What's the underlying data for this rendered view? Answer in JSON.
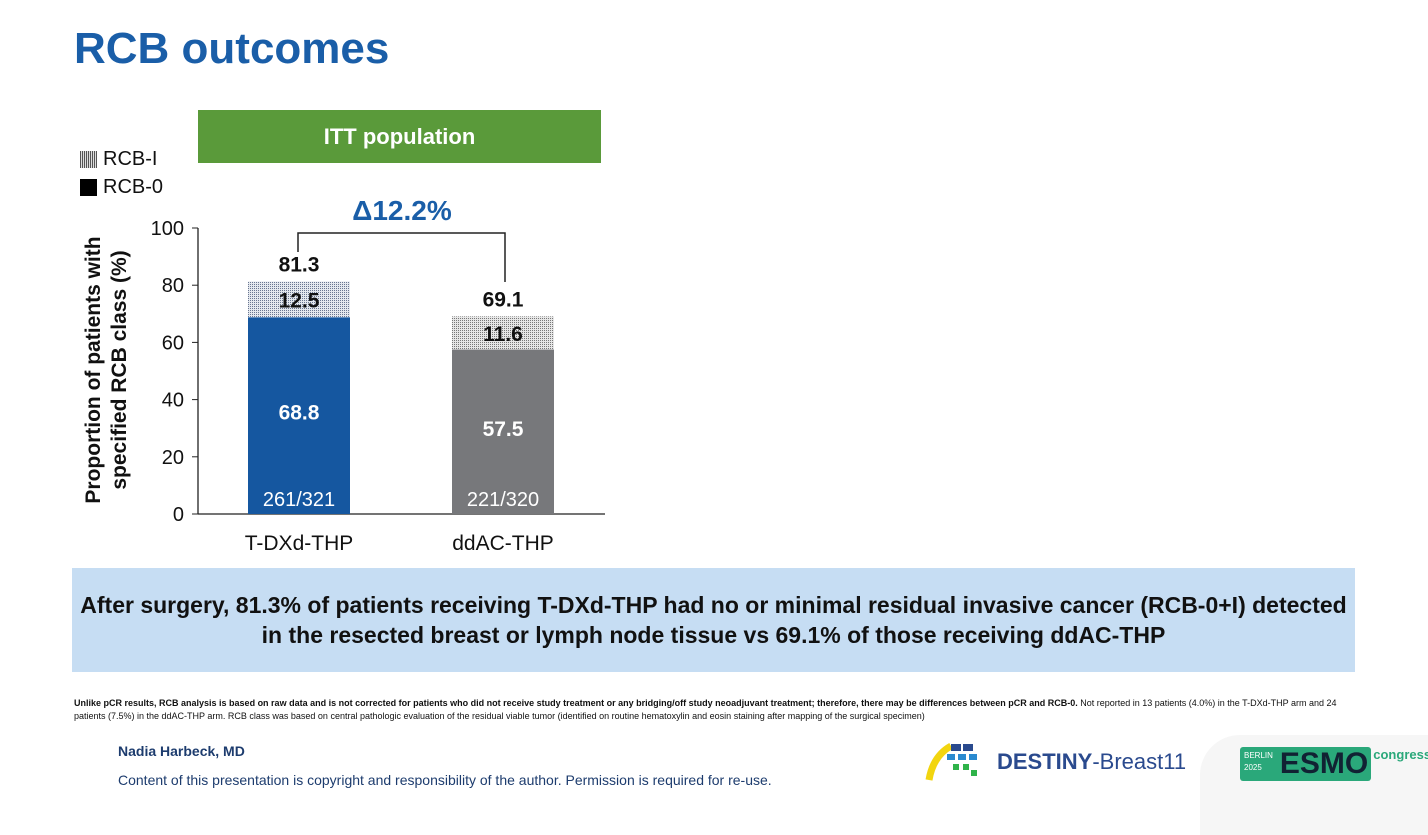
{
  "title": "RCB outcomes",
  "population_label": "ITT population",
  "legend": [
    {
      "label": "RCB-I"
    },
    {
      "label": "RCB-0"
    }
  ],
  "delta_label": "Δ12.2%",
  "chart_data": {
    "type": "bar",
    "stacked": true,
    "ylabel": "Proportion of patients with specified RCB class (%)",
    "ylabel_lines": [
      "Proportion of patients with",
      "specified RCB class (%)"
    ],
    "ylim": [
      0,
      100
    ],
    "yticks": [
      "0",
      "20",
      "40",
      "60",
      "80",
      "100"
    ],
    "categories": [
      "T-DXd-THP",
      "ddAC-THP"
    ],
    "series": [
      {
        "name": "RCB-0",
        "values": [
          68.8,
          57.5
        ],
        "labels": [
          "68.8",
          "57.5"
        ],
        "colors": [
          "#1557a0",
          "#77787b"
        ]
      },
      {
        "name": "RCB-I",
        "values": [
          12.5,
          11.6
        ],
        "labels": [
          "12.5",
          "11.6"
        ]
      }
    ],
    "totals": [
      "81.3",
      "69.1"
    ],
    "counts": [
      "261/321",
      "221/320"
    ]
  },
  "summary": "After surgery, 81.3% of patients receiving T-DXd-THP had no or minimal residual invasive cancer (RCB-0+I) detected in the resected breast or lymph node tissue vs 69.1% of those receiving ddAC-THP",
  "footnote_bold": "Unlike pCR results, RCB analysis is based on raw data and is not corrected for patients who did not receive study treatment or any bridging/off study neoadjuvant treatment; therefore, there may be differences between pCR and RCB-0.",
  "footnote_rest": " Not reported in 13 patients (4.0%) in the T-DXd-THP arm and 24 patients (7.5%) in the ddAC-THP arm. RCB class was based on central pathologic evaluation of the residual viable tumor (identified on routine hematoxylin and eosin staining after mapping of the surgical specimen)",
  "author": "Nadia Harbeck, MD",
  "copyright": "Content of this presentation is copyright and responsibility of the author. Permission is required for re-use.",
  "logos": {
    "destiny_bold": "DESTINY",
    "destiny_rest": "-Breast11",
    "esmo_city": "BERLIN",
    "esmo_year": "2025",
    "esmo": "ESMO",
    "esmo_suffix": "congress"
  }
}
